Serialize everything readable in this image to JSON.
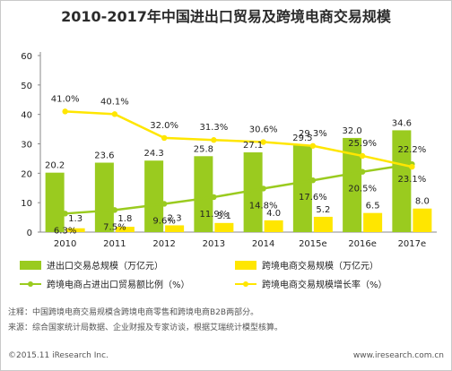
{
  "chart_data": {
    "type": "bar",
    "title": "2010-2017年中国进出口贸易及跨境电商交易规模",
    "categories": [
      "2010",
      "2011",
      "2012",
      "2013",
      "2014",
      "2015e",
      "2016e",
      "2017e"
    ],
    "ylim": [
      0,
      60
    ],
    "yticks": [
      "0",
      "10",
      "20",
      "30",
      "40",
      "50",
      "60"
    ],
    "grid": false,
    "legend_position": "bottom",
    "series": [
      {
        "name": "进出口交易总规模（万亿元）",
        "kind": "bar",
        "color": "#9acb1f",
        "values": [
          20.2,
          23.6,
          24.3,
          25.8,
          27.1,
          29.5,
          32.0,
          34.6
        ],
        "labels": [
          "20.2",
          "23.6",
          "24.3",
          "25.8",
          "27.1",
          "29.5",
          "32.0",
          "34.6"
        ]
      },
      {
        "name": "跨境电商交易规模（万亿元）",
        "kind": "bar",
        "color": "#ffe600",
        "values": [
          1.3,
          1.8,
          2.3,
          3.1,
          4.0,
          5.2,
          6.5,
          8.0
        ],
        "labels": [
          "1.3",
          "1.8",
          "2.3",
          "3.1",
          "4.0",
          "5.2",
          "6.5",
          "8.0"
        ]
      },
      {
        "name": "跨境电商占进出口贸易额比例（%）",
        "kind": "line",
        "color": "#9acb1f",
        "values": [
          6.3,
          7.5,
          9.6,
          11.9,
          14.8,
          17.6,
          20.5,
          23.1
        ],
        "labels": [
          "6.3%",
          "7.5%",
          "9.6%",
          "11.9%",
          "14.8%",
          "17.6%",
          "20.5%",
          "23.1%"
        ]
      },
      {
        "name": "跨境电商交易规模增长率（%）",
        "kind": "line",
        "color": "#ffe600",
        "values": [
          41.0,
          40.1,
          32.0,
          31.3,
          30.6,
          29.3,
          25.9,
          22.2
        ],
        "labels": [
          "41.0%",
          "40.1%",
          "32.0%",
          "31.3%",
          "30.6%",
          "29.3%",
          "25.9%",
          "22.2%"
        ]
      }
    ]
  },
  "notes": {
    "note_line": "注释：中国跨境电商交易规模含跨境电商零售和跨境电商B2B两部分。",
    "source_line": "来源：综合国家统计局数据、企业财报及专家访谈，根据艾瑞统计模型核算。"
  },
  "footer": {
    "copyright": "©2015.11 iResearch Inc.",
    "website": "www.iresearch.com.cn"
  }
}
